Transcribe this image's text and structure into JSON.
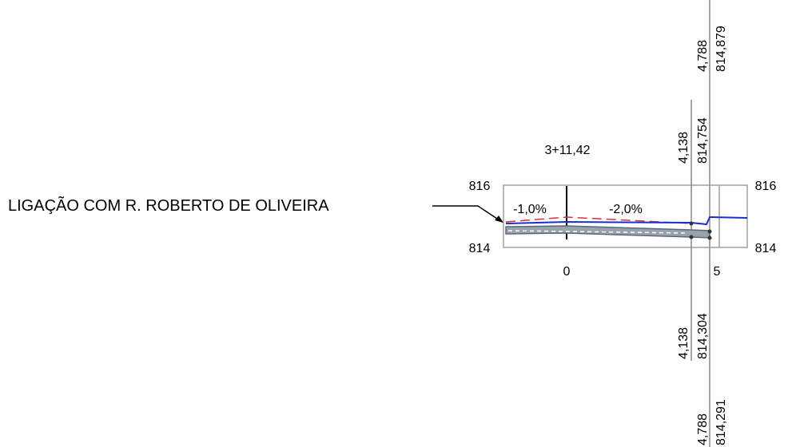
{
  "station": "3+11,42",
  "label": "LIGAÇÃO COM R. ROBERTO DE OLIVEIRA",
  "elevation_labels": {
    "left_top": "816",
    "left_bottom": "814",
    "right_top": "816",
    "right_bottom": "814"
  },
  "offset_labels": {
    "zero": "0",
    "five": "5"
  },
  "slopes": {
    "left": "-1,0%",
    "right": "-2,0%"
  },
  "points": [
    {
      "offset": "4,788",
      "elevation": "814,879"
    },
    {
      "offset": "4,138",
      "elevation": "814,754"
    },
    {
      "offset": "4,138",
      "elevation": "814,304"
    },
    {
      "offset": "4,788",
      "elevation": "814,291"
    }
  ]
}
